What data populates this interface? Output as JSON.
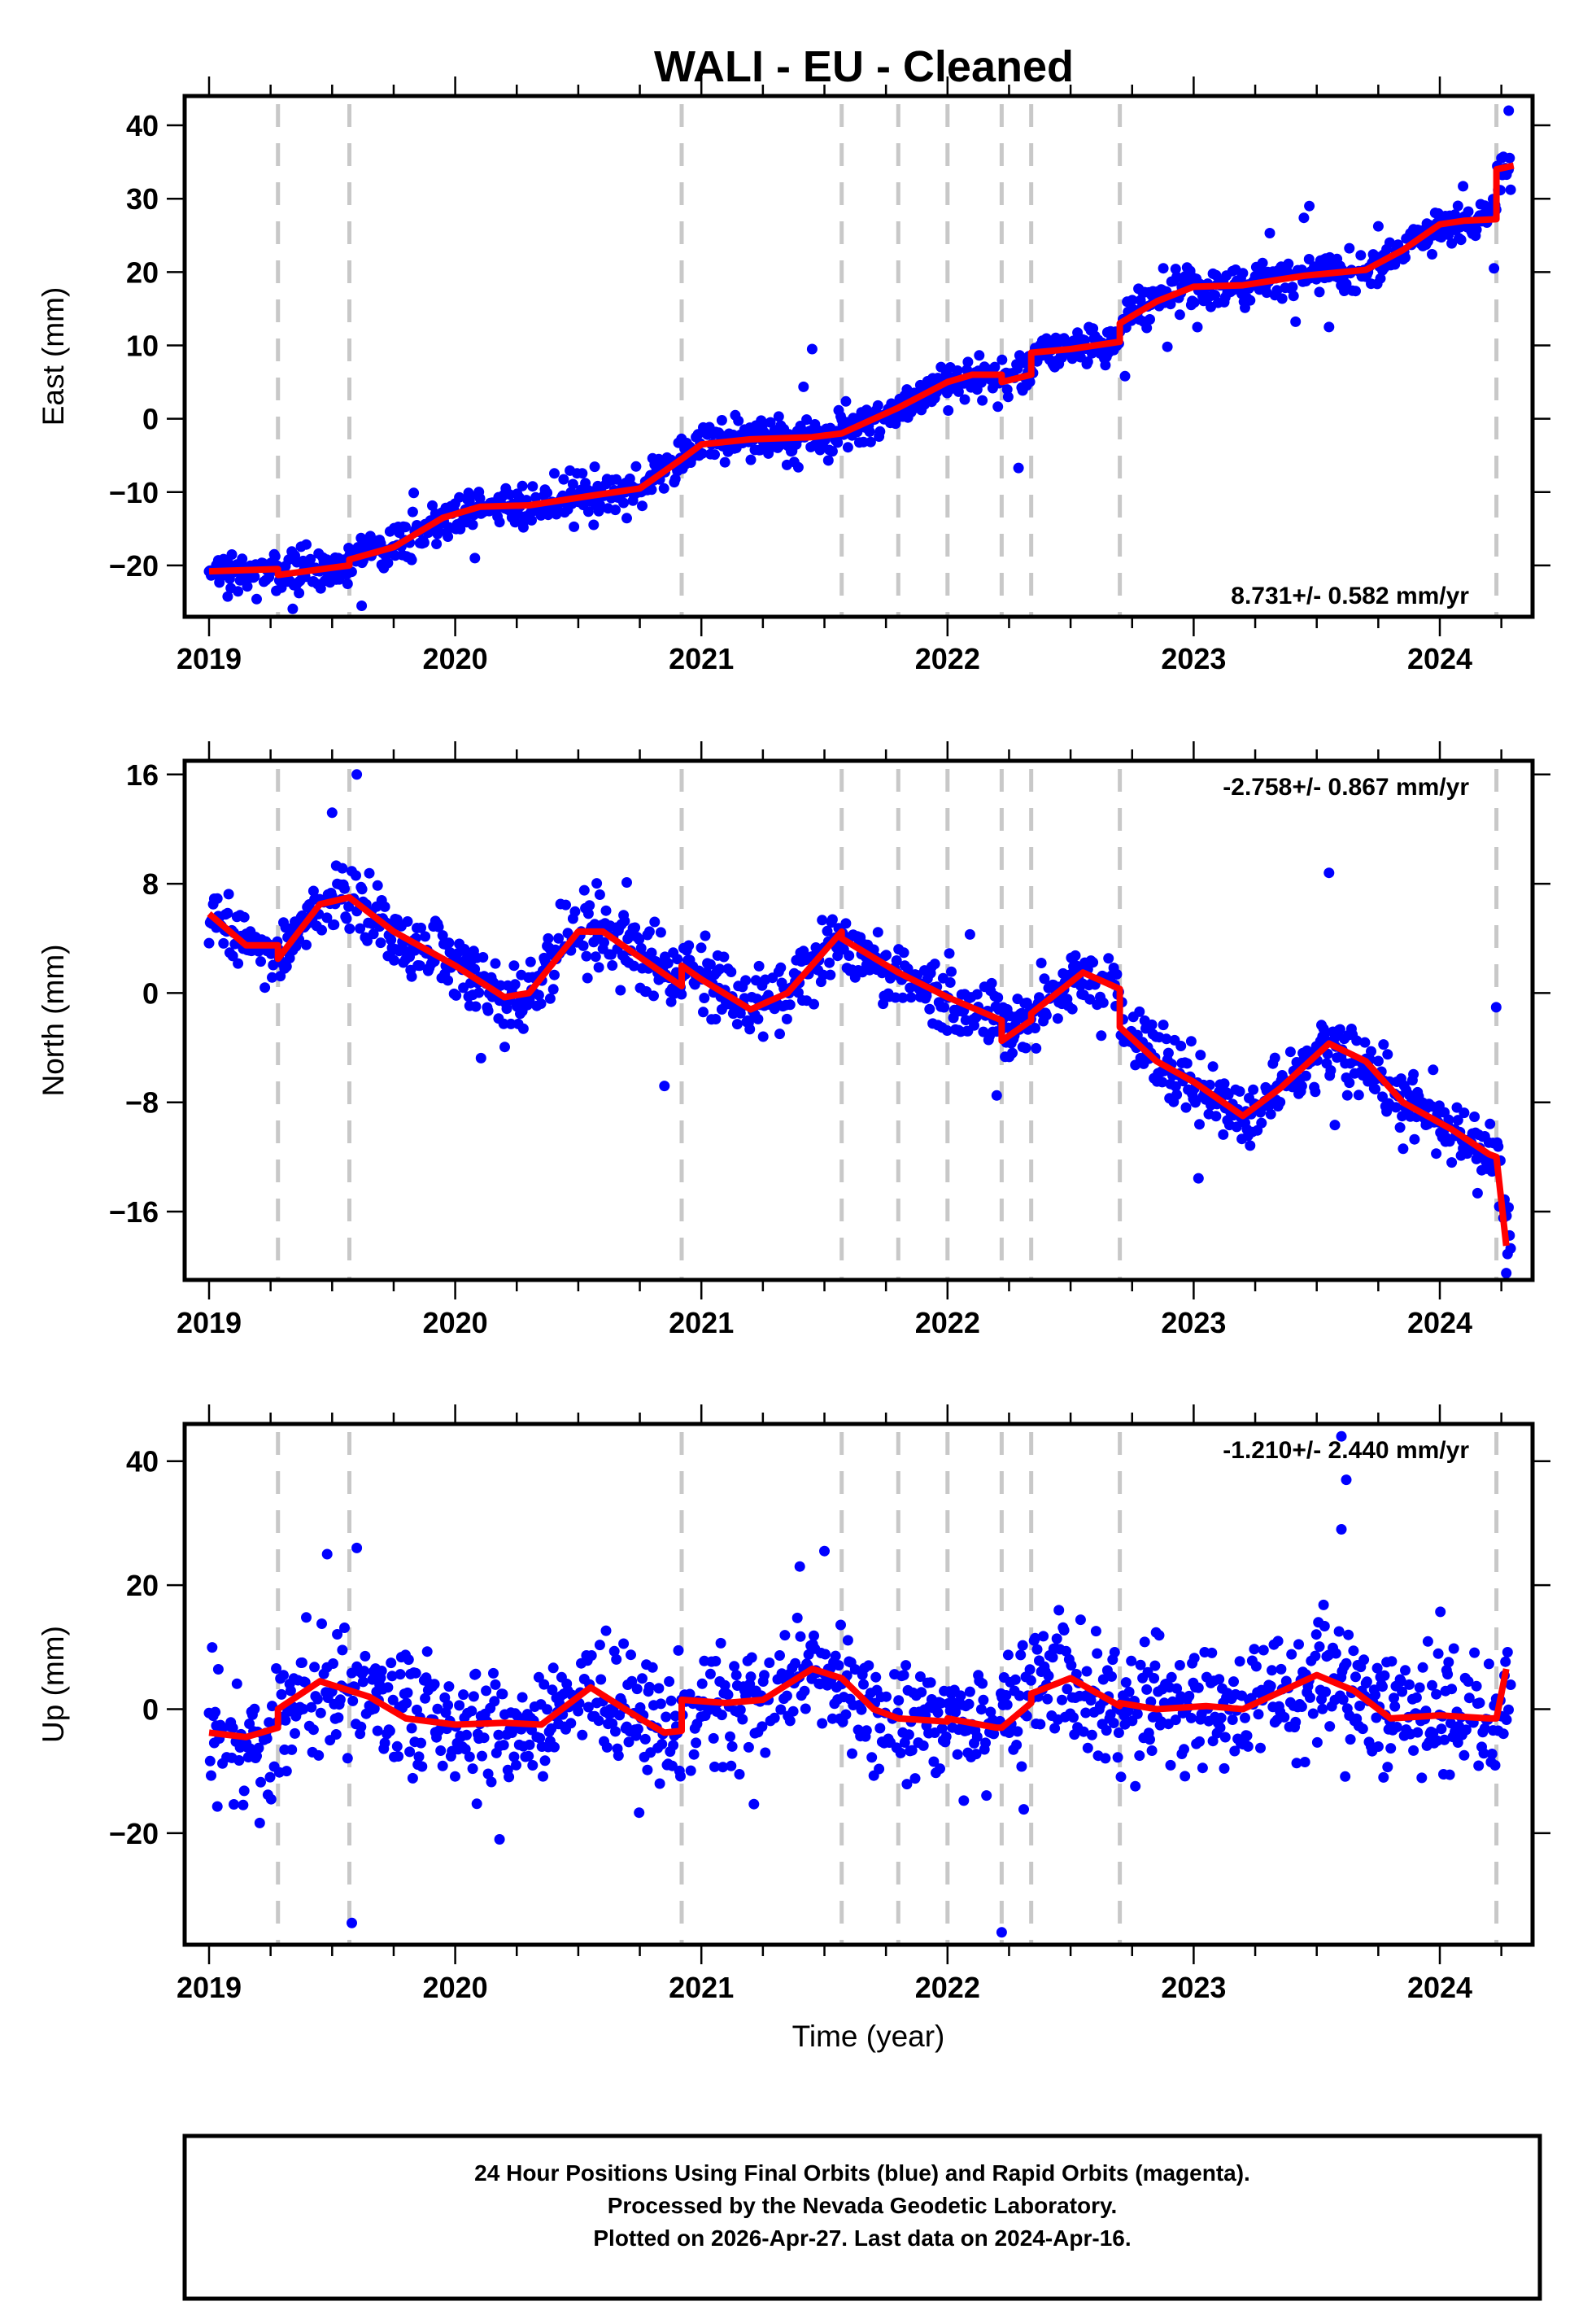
{
  "title": "WALI  - EU - Cleaned",
  "footer": {
    "lines": [
      "24 Hour Positions Using Final Orbits (blue) and Rapid Orbits (magenta).",
      "Processed by the Nevada Geodetic Laboratory.",
      "Plotted on 2026-Apr-27. Last data on 2024-Apr-16."
    ]
  },
  "colors": {
    "points": "#0000ff",
    "model": "#ff0000",
    "discontinuity": "#c8c8c8",
    "axis": "#000000"
  },
  "chart_data": [
    {
      "type": "scatter",
      "name": "east",
      "title": "WALI  - EU - Cleaned",
      "xlabel": "",
      "ylabel": "East (mm)",
      "xlim": [
        2018.9,
        2024.35
      ],
      "ylim": [
        -27,
        44
      ],
      "xticks": [
        2019,
        2020,
        2021,
        2022,
        2023,
        2024
      ],
      "xtick_labels": [
        "2019",
        "2020",
        "2021",
        "2022",
        "2023",
        "2024"
      ],
      "yticks": [
        -20,
        -10,
        0,
        10,
        20,
        30,
        40
      ],
      "ytick_labels": [
        "−20",
        "−10",
        "0",
        "10",
        "20",
        "30",
        "40"
      ],
      "rate_label": "8.731+/- 0.582 mm/yr",
      "rate_position": "bottom-right",
      "discontinuities": [
        2019.28,
        2019.57,
        2020.92,
        2021.57,
        2021.8,
        2022.0,
        2022.22,
        2022.34,
        2022.7,
        2024.23
      ],
      "model_knots": [
        [
          2019.0,
          -20.8
        ],
        [
          2019.28,
          -20.5
        ],
        [
          2019.28,
          -21.3
        ],
        [
          2019.57,
          -20.0
        ],
        [
          2019.57,
          -19.2
        ],
        [
          2019.75,
          -17.5
        ],
        [
          2019.95,
          -13.5
        ],
        [
          2020.1,
          -12.0
        ],
        [
          2020.3,
          -11.8
        ],
        [
          2020.55,
          -10.5
        ],
        [
          2020.75,
          -9.5
        ],
        [
          2020.92,
          -5.5
        ],
        [
          2021.0,
          -3.5
        ],
        [
          2021.2,
          -2.8
        ],
        [
          2021.45,
          -2.5
        ],
        [
          2021.57,
          -2.0
        ],
        [
          2021.8,
          1.5
        ],
        [
          2022.0,
          5.0
        ],
        [
          2022.1,
          6.0
        ],
        [
          2022.22,
          6.0
        ],
        [
          2022.22,
          5.0
        ],
        [
          2022.34,
          6.0
        ],
        [
          2022.34,
          9.0
        ],
        [
          2022.5,
          9.5
        ],
        [
          2022.7,
          10.5
        ],
        [
          2022.7,
          13.0
        ],
        [
          2022.85,
          16.0
        ],
        [
          2023.0,
          18.0
        ],
        [
          2023.2,
          18.2
        ],
        [
          2023.45,
          19.5
        ],
        [
          2023.7,
          20.3
        ],
        [
          2023.85,
          23.0
        ],
        [
          2024.0,
          26.5
        ],
        [
          2024.1,
          27.0
        ],
        [
          2024.23,
          27.2
        ],
        [
          2024.23,
          34.0
        ],
        [
          2024.3,
          34.5
        ]
      ],
      "noise_mm": 1.4,
      "outliers": [
        [
          2024.28,
          42.0
        ],
        [
          2023.47,
          29.0
        ],
        [
          2023.55,
          12.5
        ],
        [
          2020.08,
          -19.0
        ],
        [
          2021.45,
          9.5
        ],
        [
          2019.62,
          -25.5
        ],
        [
          2024.22,
          20.5
        ]
      ]
    },
    {
      "type": "scatter",
      "name": "north",
      "xlabel": "",
      "ylabel": "North (mm)",
      "xlim": [
        2018.9,
        2024.35
      ],
      "ylim": [
        -21,
        17
      ],
      "xticks": [
        2019,
        2020,
        2021,
        2022,
        2023,
        2024
      ],
      "xtick_labels": [
        "2019",
        "2020",
        "2021",
        "2022",
        "2023",
        "2024"
      ],
      "yticks": [
        -16,
        -8,
        0,
        8,
        16
      ],
      "ytick_labels": [
        "−16",
        "−8",
        "0",
        "8",
        "16"
      ],
      "rate_label": "-2.758+/- 0.867 mm/yr",
      "rate_position": "top-right",
      "discontinuities": [
        2019.28,
        2019.57,
        2020.92,
        2021.57,
        2021.8,
        2022.0,
        2022.22,
        2022.34,
        2022.7,
        2024.23
      ],
      "model_knots": [
        [
          2019.0,
          5.8
        ],
        [
          2019.15,
          3.5
        ],
        [
          2019.28,
          3.5
        ],
        [
          2019.28,
          2.5
        ],
        [
          2019.45,
          6.5
        ],
        [
          2019.57,
          7.0
        ],
        [
          2019.75,
          4.5
        ],
        [
          2020.0,
          2.0
        ],
        [
          2020.2,
          -0.3
        ],
        [
          2020.3,
          0.0
        ],
        [
          2020.5,
          4.5
        ],
        [
          2020.6,
          4.5
        ],
        [
          2020.92,
          0.5
        ],
        [
          2020.92,
          2.0
        ],
        [
          2021.0,
          1.0
        ],
        [
          2021.2,
          -1.2
        ],
        [
          2021.35,
          0.0
        ],
        [
          2021.57,
          4.5
        ],
        [
          2021.57,
          4.0
        ],
        [
          2021.8,
          1.5
        ],
        [
          2022.0,
          -0.3
        ],
        [
          2022.22,
          -2.0
        ],
        [
          2022.22,
          -3.5
        ],
        [
          2022.34,
          -2.0
        ],
        [
          2022.34,
          -1.5
        ],
        [
          2022.55,
          1.5
        ],
        [
          2022.7,
          0.3
        ],
        [
          2022.7,
          -2.5
        ],
        [
          2022.85,
          -5.0
        ],
        [
          2023.0,
          -6.5
        ],
        [
          2023.2,
          -9.0
        ],
        [
          2023.35,
          -7.0
        ],
        [
          2023.55,
          -3.7
        ],
        [
          2023.7,
          -5.0
        ],
        [
          2023.85,
          -8.0
        ],
        [
          2024.05,
          -10.0
        ],
        [
          2024.2,
          -11.8
        ],
        [
          2024.23,
          -12.0
        ],
        [
          2024.27,
          -18.5
        ]
      ],
      "noise_mm": 1.2,
      "outliers": [
        [
          2023.55,
          8.8
        ],
        [
          2019.6,
          16.0
        ],
        [
          2019.5,
          13.2
        ],
        [
          2020.85,
          -6.8
        ],
        [
          2024.27,
          -20.5
        ],
        [
          2022.2,
          -7.5
        ]
      ]
    },
    {
      "type": "scatter",
      "name": "up",
      "xlabel": "Time (year)",
      "ylabel": "Up (mm)",
      "xlim": [
        2018.9,
        2024.35
      ],
      "ylim": [
        -38,
        46
      ],
      "xticks": [
        2019,
        2020,
        2021,
        2022,
        2023,
        2024
      ],
      "xtick_labels": [
        "2019",
        "2020",
        "2021",
        "2022",
        "2023",
        "2024"
      ],
      "yticks": [
        -20,
        0,
        20,
        40
      ],
      "ytick_labels": [
        "−20",
        "0",
        "20",
        "40"
      ],
      "rate_label": "-1.210+/- 2.440 mm/yr",
      "rate_position": "top-right",
      "discontinuities": [
        2019.28,
        2019.57,
        2020.92,
        2021.57,
        2021.8,
        2022.0,
        2022.22,
        2022.34,
        2022.7,
        2024.23
      ],
      "model_knots": [
        [
          2019.0,
          -3.8
        ],
        [
          2019.15,
          -4.5
        ],
        [
          2019.28,
          -3.0
        ],
        [
          2019.28,
          0.0
        ],
        [
          2019.45,
          4.5
        ],
        [
          2019.65,
          2.0
        ],
        [
          2019.8,
          -1.5
        ],
        [
          2020.0,
          -2.5
        ],
        [
          2020.2,
          -2.2
        ],
        [
          2020.35,
          -2.5
        ],
        [
          2020.55,
          3.5
        ],
        [
          2020.75,
          -1.5
        ],
        [
          2020.85,
          -3.8
        ],
        [
          2020.92,
          -3.5
        ],
        [
          2020.92,
          1.5
        ],
        [
          2021.1,
          1.0
        ],
        [
          2021.25,
          1.5
        ],
        [
          2021.45,
          6.5
        ],
        [
          2021.57,
          5.0
        ],
        [
          2021.7,
          0.0
        ],
        [
          2021.8,
          -1.5
        ],
        [
          2022.0,
          -2.0
        ],
        [
          2022.0,
          -1.5
        ],
        [
          2022.2,
          -3.0
        ],
        [
          2022.22,
          -3.0
        ],
        [
          2022.34,
          1.0
        ],
        [
          2022.34,
          2.5
        ],
        [
          2022.5,
          5.0
        ],
        [
          2022.7,
          0.5
        ],
        [
          2022.7,
          1.0
        ],
        [
          2022.85,
          0.0
        ],
        [
          2023.05,
          0.5
        ],
        [
          2023.2,
          0.0
        ],
        [
          2023.5,
          5.5
        ],
        [
          2023.65,
          3.0
        ],
        [
          2023.8,
          -1.5
        ],
        [
          2024.0,
          -1.0
        ],
        [
          2024.2,
          -1.5
        ],
        [
          2024.23,
          -1.5
        ],
        [
          2024.27,
          6.5
        ]
      ],
      "noise_mm": 5.0,
      "outliers": [
        [
          2023.6,
          44.0
        ],
        [
          2023.62,
          37.0
        ],
        [
          2023.6,
          29.0
        ],
        [
          2019.58,
          -34.5
        ],
        [
          2022.22,
          -36.0
        ],
        [
          2020.18,
          -21.0
        ],
        [
          2019.6,
          26.0
        ],
        [
          2019.48,
          25.0
        ],
        [
          2021.5,
          25.5
        ],
        [
          2021.4,
          23.0
        ]
      ]
    }
  ]
}
